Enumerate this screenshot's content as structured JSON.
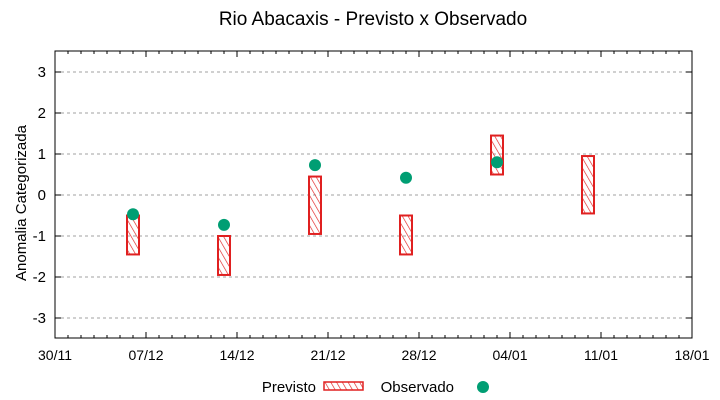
{
  "title": "Rio Abacaxis - Previsto x Observado",
  "chart_data": {
    "type": "floating-bar+scatter",
    "title": "Rio Abacaxis - Previsto x Observado",
    "xlabel": "",
    "ylabel": "Anomalia Categorizada",
    "ylim": [
      -3.5,
      3.5
    ],
    "yticks": [
      "3",
      "2",
      "1",
      "0",
      "-1",
      "-2",
      "-3"
    ],
    "ytick_values": [
      3,
      2,
      1,
      0,
      -1,
      -2,
      -3
    ],
    "xticks": [
      "30/11",
      "07/12",
      "14/12",
      "21/12",
      "28/12",
      "04/01",
      "11/01",
      "18/01"
    ],
    "grid": true,
    "legend_position": "bottom",
    "colors": {
      "previsto": "#e02020",
      "observado": "#009e73"
    },
    "series": [
      {
        "name": "Previsto",
        "kind": "range-bar",
        "x": [
          "06/12",
          "13/12",
          "20/12",
          "27/12",
          "03/01",
          "10/01"
        ],
        "x_day_offset": [
          6,
          13,
          20,
          27,
          34,
          41
        ],
        "low": [
          -1.45,
          -1.95,
          -0.95,
          -1.45,
          0.5,
          -0.45
        ],
        "high": [
          -0.5,
          -1.0,
          0.45,
          -0.5,
          1.45,
          0.95
        ]
      },
      {
        "name": "Observado",
        "kind": "scatter",
        "x": [
          "06/12",
          "13/12",
          "20/12",
          "27/12",
          "03/01"
        ],
        "x_day_offset": [
          6,
          13,
          20,
          27,
          34
        ],
        "values": [
          -0.47,
          -0.73,
          0.73,
          0.42,
          0.8
        ]
      }
    ]
  },
  "legend": {
    "previsto_label": "Previsto",
    "observado_label": "Observado"
  }
}
